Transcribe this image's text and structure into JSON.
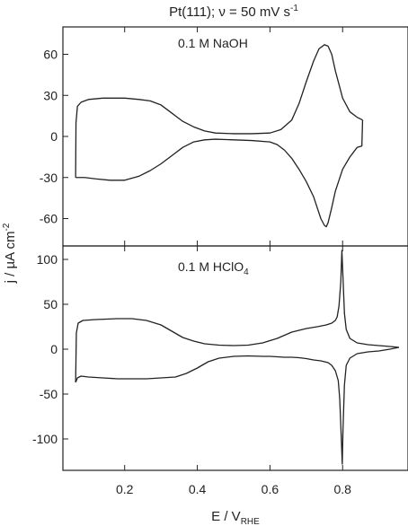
{
  "chart_data": {
    "type": "line",
    "title_parts": {
      "main": "Pt(111); ν = 50 mV s",
      "sup": "-1"
    },
    "xlabel_parts": {
      "main": "E / V",
      "sub": "RHE"
    },
    "ylabel_parts": {
      "main": "j / µA cm",
      "sup": "-2"
    },
    "xlim": [
      0.03,
      0.98
    ],
    "x_ticks": [
      0.2,
      0.4,
      0.6,
      0.8
    ],
    "x_tick_labels": [
      "0.2",
      "0.4",
      "0.6",
      "0.8"
    ],
    "panels": [
      {
        "annotation_parts": {
          "main": "0.1 M NaOH",
          "sub": ""
        },
        "ylim": [
          -80,
          80
        ],
        "y_ticks": [
          60,
          30,
          0,
          -30,
          -60
        ],
        "y_tick_labels": [
          "60",
          "30",
          "0",
          "-30",
          "-60"
        ],
        "series": [
          {
            "segment": "anodic",
            "x": [
              0.065,
              0.066,
              0.07,
              0.08,
              0.1,
              0.14,
              0.2,
              0.24,
              0.27,
              0.3,
              0.33,
              0.36,
              0.39,
              0.42,
              0.45,
              0.5,
              0.55,
              0.6,
              0.63,
              0.66,
              0.68,
              0.7,
              0.72,
              0.735,
              0.75,
              0.76,
              0.77,
              0.78,
              0.8,
              0.82,
              0.84,
              0.855
            ],
            "y": [
              -30,
              10,
              22,
              25,
              27,
              28,
              28,
              27,
              26,
              23,
              17,
              11,
              7,
              4,
              2.5,
              2,
              2,
              2.5,
              5,
              12,
              24,
              40,
              55,
              64,
              67,
              66,
              60,
              48,
              28,
              18,
              14,
              12
            ]
          },
          {
            "segment": "cathodic",
            "x": [
              0.855,
              0.853,
              0.84,
              0.82,
              0.8,
              0.79,
              0.78,
              0.77,
              0.76,
              0.755,
              0.75,
              0.74,
              0.73,
              0.72,
              0.7,
              0.68,
              0.66,
              0.64,
              0.62,
              0.6,
              0.55,
              0.5,
              0.45,
              0.42,
              0.39,
              0.36,
              0.33,
              0.3,
              0.27,
              0.24,
              0.2,
              0.16,
              0.12,
              0.09,
              0.07,
              0.065
            ],
            "y": [
              12,
              -7,
              -8,
              -15,
              -24,
              -32,
              -40,
              -52,
              -63,
              -66,
              -65,
              -60,
              -52,
              -44,
              -33,
              -24,
              -16,
              -10,
              -6,
              -4,
              -3,
              -2.5,
              -2,
              -2.5,
              -4,
              -8,
              -14,
              -20,
              -25,
              -29,
              -32,
              -32,
              -31,
              -30,
              -30,
              -30
            ]
          }
        ]
      },
      {
        "annotation_parts": {
          "main": "0.1 M HClO",
          "sub": "4"
        },
        "ylim": [
          -135,
          115
        ],
        "y_ticks": [
          100,
          50,
          0,
          -50,
          -100
        ],
        "y_tick_labels": [
          "100",
          "50",
          "0",
          "-50",
          "-100"
        ],
        "series": [
          {
            "segment": "anodic",
            "x": [
              0.065,
              0.067,
              0.072,
              0.085,
              0.12,
              0.18,
              0.22,
              0.26,
              0.3,
              0.33,
              0.36,
              0.39,
              0.42,
              0.46,
              0.5,
              0.54,
              0.58,
              0.62,
              0.66,
              0.7,
              0.73,
              0.755,
              0.77,
              0.78,
              0.785,
              0.79,
              0.795,
              0.798,
              0.801,
              0.805,
              0.81,
              0.82,
              0.84,
              0.87,
              0.9,
              0.93,
              0.955
            ],
            "y": [
              -37,
              18,
              29,
              32,
              33,
              34,
              34,
              32,
              27,
              20,
              13,
              9,
              6,
              4.5,
              4,
              4.5,
              7,
              12,
              19,
              23,
              25,
              27,
              29,
              32,
              36,
              48,
              75,
              110,
              80,
              40,
              22,
              12,
              7,
              5,
              4,
              3,
              2
            ]
          },
          {
            "segment": "cathodic",
            "x": [
              0.955,
              0.93,
              0.9,
              0.87,
              0.84,
              0.82,
              0.81,
              0.805,
              0.801,
              0.799,
              0.796,
              0.792,
              0.788,
              0.78,
              0.77,
              0.76,
              0.74,
              0.72,
              0.7,
              0.68,
              0.66,
              0.64,
              0.62,
              0.6,
              0.58,
              0.54,
              0.5,
              0.46,
              0.43,
              0.4,
              0.37,
              0.34,
              0.3,
              0.26,
              0.22,
              0.18,
              0.14,
              0.1,
              0.08,
              0.07,
              0.065
            ],
            "y": [
              2,
              0,
              -2,
              -3,
              -5,
              -10,
              -18,
              -40,
              -90,
              -128,
              -95,
              -55,
              -35,
              -24,
              -18,
              -15,
              -13,
              -12,
              -10.5,
              -9.5,
              -9,
              -9,
              -8.5,
              -8,
              -8,
              -7.5,
              -8,
              -10,
              -14,
              -21,
              -27,
              -31,
              -32,
              -33,
              -33,
              -33,
              -32,
              -31,
              -30,
              -32,
              -37
            ]
          }
        ]
      }
    ]
  }
}
